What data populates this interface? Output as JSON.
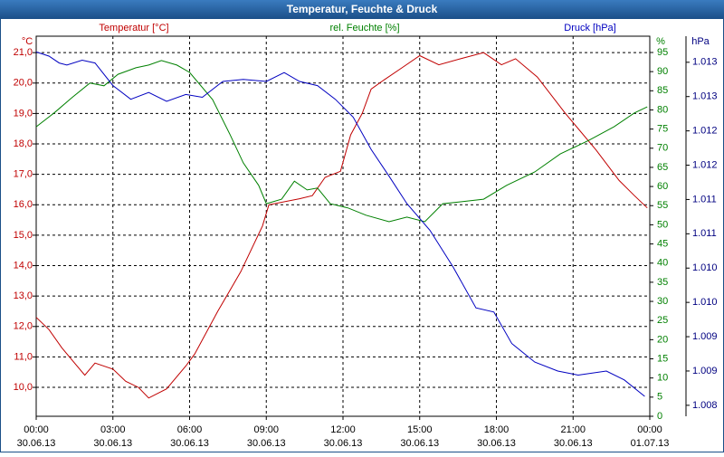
{
  "chart_data": {
    "type": "line",
    "title": "Temperatur, Feuchte & Druck",
    "y_unit": "°C",
    "y2_unit": "%",
    "y3_unit": "hPa",
    "xlim": [
      0,
      24
    ],
    "xticks": [
      {
        "value": 0,
        "label": "00:00",
        "date": "30.06.13"
      },
      {
        "value": 3,
        "label": "03:00",
        "date": "30.06.13"
      },
      {
        "value": 6,
        "label": "06:00",
        "date": "30.06.13"
      },
      {
        "value": 9,
        "label": "09:00",
        "date": "30.06.13"
      },
      {
        "value": 12,
        "label": "12:00",
        "date": "30.06.13"
      },
      {
        "value": 15,
        "label": "15:00",
        "date": "30.06.13"
      },
      {
        "value": 18,
        "label": "18:00",
        "date": "30.06.13"
      },
      {
        "value": 21,
        "label": "21:00",
        "date": "30.06.13"
      },
      {
        "value": 24,
        "label": "00:00",
        "date": "01.07.13"
      }
    ],
    "ylim": [
      9.05,
      21.54
    ],
    "yticks": [
      {
        "value": 10,
        "label": "10,0"
      },
      {
        "value": 11,
        "label": "11,0"
      },
      {
        "value": 12,
        "label": "12,0"
      },
      {
        "value": 13,
        "label": "13,0"
      },
      {
        "value": 14,
        "label": "14,0"
      },
      {
        "value": 15,
        "label": "15,0"
      },
      {
        "value": 16,
        "label": "16,0"
      },
      {
        "value": 17,
        "label": "17,0"
      },
      {
        "value": 18,
        "label": "18,0"
      },
      {
        "value": 19,
        "label": "19,0"
      },
      {
        "value": 20,
        "label": "20,0"
      },
      {
        "value": 21,
        "label": "21,0"
      }
    ],
    "y2lim": [
      0,
      99.25
    ],
    "y2ticks": [
      0,
      5,
      10,
      15,
      20,
      25,
      30,
      35,
      40,
      45,
      50,
      55,
      60,
      65,
      70,
      75,
      80,
      85,
      90,
      95
    ],
    "y3lim": [
      1008.04,
      1013.58
    ],
    "y3ticks": [
      {
        "value": 1008.2,
        "label": "1.008"
      },
      {
        "value": 1008.7,
        "label": "1.009"
      },
      {
        "value": 1009.2,
        "label": "1.009"
      },
      {
        "value": 1009.7,
        "label": "1.010"
      },
      {
        "value": 1010.2,
        "label": "1.010"
      },
      {
        "value": 1010.7,
        "label": "1.011"
      },
      {
        "value": 1011.2,
        "label": "1.011"
      },
      {
        "value": 1011.7,
        "label": "1.012"
      },
      {
        "value": 1012.2,
        "label": "1.012"
      },
      {
        "value": 1012.7,
        "label": "1.013"
      },
      {
        "value": 1013.2,
        "label": "1.013"
      }
    ],
    "grid": true,
    "series": [
      {
        "name": "Temperatur [°C]",
        "color": "#c00000",
        "axis": "y",
        "x": [
          0,
          0.5,
          1,
          1.5,
          1.9,
          2.3,
          3,
          3.5,
          4,
          4.4,
          5.1,
          5.85,
          6.2,
          7.1,
          8,
          8.85,
          9.1,
          10.3,
          10.8,
          11.3,
          11.9,
          12.3,
          12.75,
          13.1,
          13.6,
          14.3,
          15,
          15.75,
          16.6,
          17.5,
          18.2,
          18.75,
          19.6,
          20.7,
          21.9,
          22.8,
          23.4,
          23.9
        ],
        "values": [
          12.3,
          11.9,
          11.3,
          10.8,
          10.4,
          10.8,
          10.6,
          10.2,
          10.0,
          9.65,
          9.95,
          10.7,
          11.1,
          12.5,
          13.8,
          15.3,
          16.0,
          16.2,
          16.3,
          16.9,
          17.1,
          18.3,
          19.0,
          19.8,
          20.1,
          20.5,
          20.9,
          20.6,
          20.8,
          21.0,
          20.6,
          20.8,
          20.2,
          19.0,
          17.8,
          16.8,
          16.3,
          15.9
        ]
      },
      {
        "name": "rel. Feuchte [%]",
        "color": "#008000",
        "axis": "y2",
        "x": [
          0,
          0.7,
          1.4,
          2.1,
          2.65,
          3.2,
          3.9,
          4.4,
          4.9,
          5.5,
          6,
          6.9,
          7.6,
          8.1,
          8.7,
          9,
          9.6,
          10.1,
          10.6,
          11,
          11.5,
          12.2,
          12.9,
          13.8,
          14.5,
          15.2,
          15.9,
          16.6,
          17.5,
          18.4,
          19.5,
          20.5,
          21.6,
          22.6,
          23.4,
          23.9
        ],
        "values": [
          75.6,
          79.2,
          83.2,
          87,
          86.3,
          89.3,
          91,
          91.7,
          92.9,
          91.7,
          89.8,
          82.7,
          73.3,
          66.2,
          60.3,
          55.5,
          56.7,
          61.4,
          59.1,
          59.6,
          55.5,
          54.4,
          52.5,
          50.8,
          52,
          50.8,
          55.5,
          56,
          56.7,
          60.3,
          63.8,
          68.5,
          72,
          75.6,
          79.2,
          80.8
        ]
      },
      {
        "name": "Druck [hPa]",
        "color": "#0000c0",
        "axis": "y3",
        "x": [
          0,
          0.5,
          0.9,
          1.2,
          1.8,
          2.3,
          3,
          3.7,
          4.4,
          5.1,
          5.85,
          6.5,
          7.3,
          8.1,
          9,
          9.7,
          10.3,
          11,
          11.7,
          12.4,
          13.1,
          13.8,
          14.5,
          15.4,
          16.3,
          17.2,
          17.9,
          18.6,
          19.5,
          20.4,
          21.2,
          22.3,
          23,
          23.8
        ],
        "values": [
          1013.35,
          1013.29,
          1013.19,
          1013.16,
          1013.23,
          1013.19,
          1012.86,
          1012.66,
          1012.76,
          1012.63,
          1012.73,
          1012.69,
          1012.92,
          1012.95,
          1012.92,
          1013.05,
          1012.92,
          1012.86,
          1012.66,
          1012.4,
          1011.93,
          1011.54,
          1011.14,
          1010.75,
          1010.22,
          1009.62,
          1009.56,
          1009.1,
          1008.83,
          1008.7,
          1008.64,
          1008.7,
          1008.57,
          1008.33
        ]
      }
    ]
  }
}
